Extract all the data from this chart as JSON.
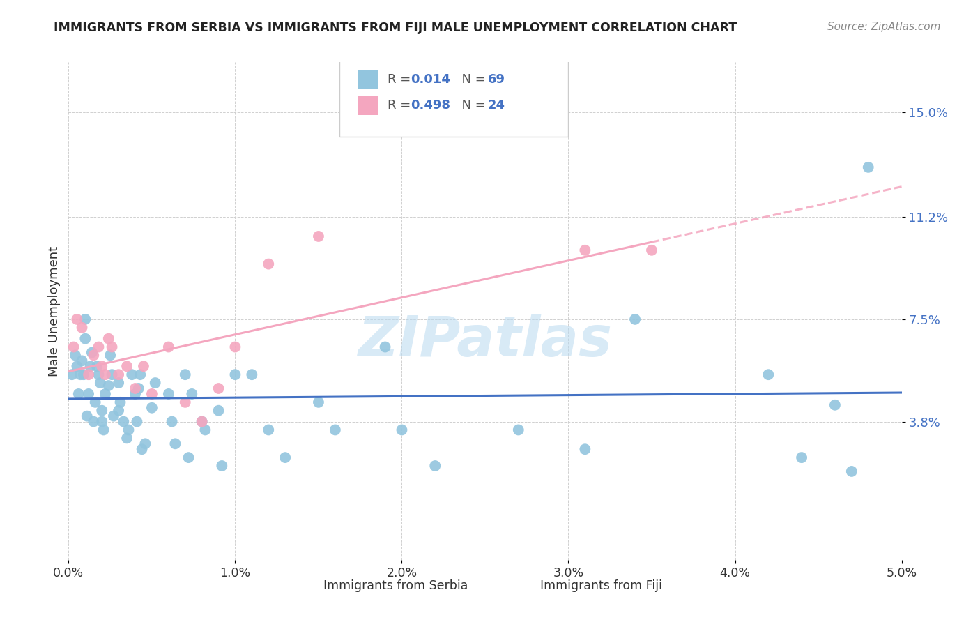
{
  "title": "IMMIGRANTS FROM SERBIA VS IMMIGRANTS FROM FIJI MALE UNEMPLOYMENT CORRELATION CHART",
  "source": "Source: ZipAtlas.com",
  "ylabel": "Male Unemployment",
  "xlim": [
    0.0,
    0.05
  ],
  "ylim": [
    -0.012,
    0.168
  ],
  "yticks": [
    0.038,
    0.075,
    0.112,
    0.15
  ],
  "ytick_labels": [
    "3.8%",
    "7.5%",
    "11.2%",
    "15.0%"
  ],
  "xticks": [
    0.0,
    0.01,
    0.02,
    0.03,
    0.04,
    0.05
  ],
  "xtick_labels": [
    "0.0%",
    "1.0%",
    "2.0%",
    "3.0%",
    "4.0%",
    "5.0%"
  ],
  "serbia_color": "#92c5de",
  "fiji_color": "#f4a6bf",
  "serbia_line_color": "#4472c4",
  "fiji_line_color": "#f4a6bf",
  "watermark": "ZIPatlas",
  "watermark_color": "#b8d9f0",
  "serbia_x": [
    0.0002,
    0.0004,
    0.0005,
    0.0006,
    0.0007,
    0.0008,
    0.0009,
    0.001,
    0.001,
    0.0011,
    0.0012,
    0.0013,
    0.0014,
    0.0015,
    0.0016,
    0.0017,
    0.0018,
    0.0019,
    0.002,
    0.002,
    0.0021,
    0.0022,
    0.0024,
    0.0025,
    0.0026,
    0.0027,
    0.003,
    0.003,
    0.0031,
    0.0033,
    0.0035,
    0.0036,
    0.0038,
    0.004,
    0.0041,
    0.0042,
    0.0043,
    0.0044,
    0.0046,
    0.005,
    0.0052,
    0.006,
    0.0062,
    0.0064,
    0.007,
    0.0072,
    0.0074,
    0.008,
    0.0082,
    0.009,
    0.0092,
    0.01,
    0.011,
    0.012,
    0.013,
    0.015,
    0.016,
    0.019,
    0.02,
    0.022,
    0.027,
    0.031,
    0.034,
    0.042,
    0.044,
    0.046,
    0.047,
    0.048
  ],
  "serbia_y": [
    0.055,
    0.062,
    0.058,
    0.048,
    0.055,
    0.06,
    0.055,
    0.075,
    0.068,
    0.04,
    0.048,
    0.058,
    0.063,
    0.038,
    0.045,
    0.058,
    0.055,
    0.052,
    0.042,
    0.038,
    0.035,
    0.048,
    0.051,
    0.062,
    0.055,
    0.04,
    0.052,
    0.042,
    0.045,
    0.038,
    0.032,
    0.035,
    0.055,
    0.048,
    0.038,
    0.05,
    0.055,
    0.028,
    0.03,
    0.043,
    0.052,
    0.048,
    0.038,
    0.03,
    0.055,
    0.025,
    0.048,
    0.038,
    0.035,
    0.042,
    0.022,
    0.055,
    0.055,
    0.035,
    0.025,
    0.045,
    0.035,
    0.065,
    0.035,
    0.022,
    0.035,
    0.028,
    0.075,
    0.055,
    0.025,
    0.044,
    0.02,
    0.13
  ],
  "fiji_x": [
    0.0003,
    0.0005,
    0.0008,
    0.0012,
    0.0015,
    0.0018,
    0.002,
    0.0022,
    0.0024,
    0.0026,
    0.003,
    0.0035,
    0.004,
    0.0045,
    0.005,
    0.006,
    0.007,
    0.008,
    0.009,
    0.01,
    0.012,
    0.015,
    0.031,
    0.035
  ],
  "fiji_y": [
    0.065,
    0.075,
    0.072,
    0.055,
    0.062,
    0.065,
    0.058,
    0.055,
    0.068,
    0.065,
    0.055,
    0.058,
    0.05,
    0.058,
    0.048,
    0.065,
    0.045,
    0.038,
    0.05,
    0.065,
    0.095,
    0.105,
    0.1,
    0.1
  ]
}
